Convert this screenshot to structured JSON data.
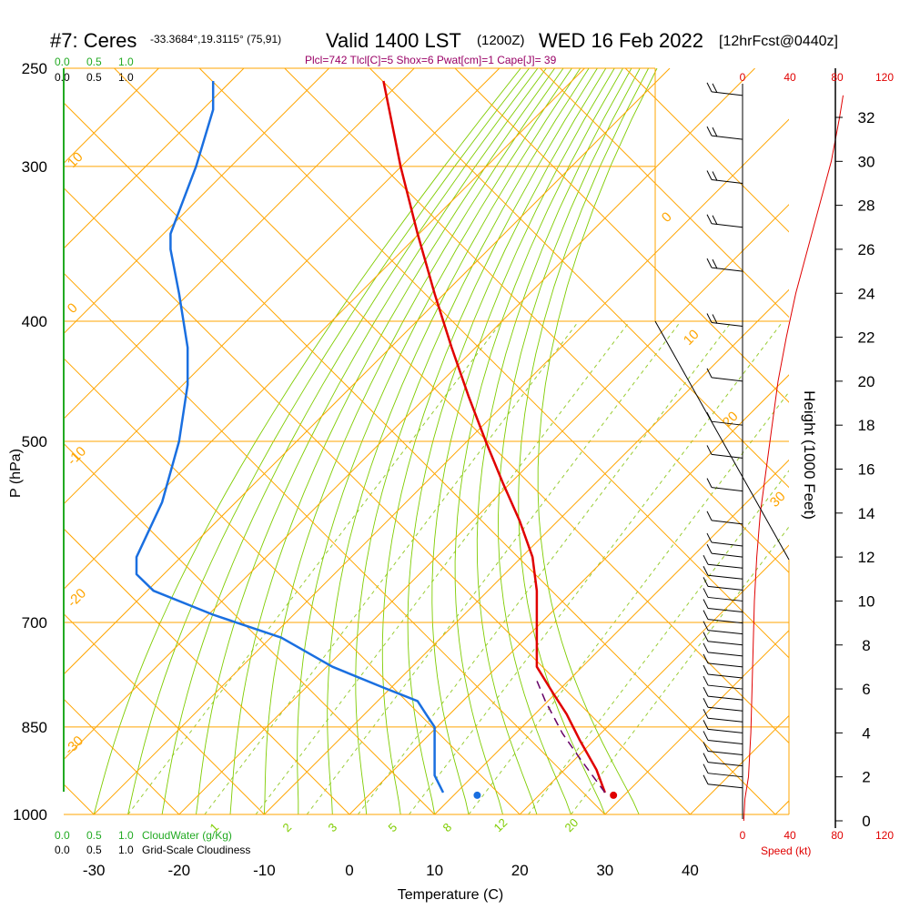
{
  "header": {
    "station": "#7: Ceres",
    "coords": "-33.3684°,19.3115° (75,91)",
    "valid": "Valid 1400 LST",
    "zulu": "(1200Z)",
    "date": "WED 16 Feb 2022",
    "forecast": "[12hrFcst@0440z]",
    "indices": "Plcl=742 Tlcl[C]=5 Shox=6 Pwat[cm]=1 Cape[J]= 39"
  },
  "legend": {
    "cloudwater_label": "CloudWater (g/Kg)",
    "cloudiness_label": "Grid-Scale Cloudiness",
    "scale_ticks": [
      "0.0",
      "0.5",
      "1.0"
    ],
    "cloudiness_ticks": [
      "0.0",
      "0.5",
      "1.0"
    ],
    "top_cloudwater_ticks": [
      "0.0",
      "0.5",
      "1.0"
    ],
    "top_cloudiness_ticks": [
      "0.0",
      "0.5",
      "1.0"
    ]
  },
  "colors": {
    "isobar": "#ffa500",
    "isotherm": "#ffa500",
    "dry_adiabat": "#ffa500",
    "moist_adiabat": "#7fcc00",
    "mixing_ratio": "#99cc33",
    "temperature": "#e00000",
    "dewpoint": "#1a6fe0",
    "parcel": "#660066",
    "speed": "#e00000",
    "indices": "#990066",
    "cloudwater": "#22aa22"
  },
  "chart_data": {
    "type": "line",
    "title": "#7: Ceres  Valid 1400 LST (1200Z) WED 16 Feb 2022",
    "xlabel": "Temperature (C)",
    "ylabel": "P (hPa)",
    "right_ylabel": "Height (1000 Feet)",
    "speed_label": "Speed (kt)",
    "xlim": [
      -35,
      45
    ],
    "pressure_ticks": [
      250,
      300,
      400,
      500,
      700,
      850,
      1000
    ],
    "temperature_ticks": [
      -30,
      -20,
      -10,
      0,
      10,
      20,
      30,
      40
    ],
    "height_ticks": [
      0,
      2,
      4,
      6,
      8,
      10,
      12,
      14,
      16,
      18,
      20,
      22,
      24,
      26,
      28,
      30,
      32
    ],
    "speed_ticks": [
      0,
      40,
      80,
      120
    ],
    "isotherm_labels": [
      "10",
      "0",
      "-10",
      "-20",
      "-30",
      "0",
      "10",
      "20",
      "30"
    ],
    "mixing_ratio_labels": [
      "1",
      "2",
      "3",
      "5",
      "8",
      "12",
      "20"
    ],
    "series": [
      {
        "name": "Temperature",
        "points": [
          [
            4,
            256
          ],
          [
            6,
            300
          ],
          [
            8,
            340
          ],
          [
            10,
            380
          ],
          [
            12,
            420
          ],
          [
            14,
            460
          ],
          [
            16,
            500
          ],
          [
            18,
            540
          ],
          [
            20,
            580
          ],
          [
            21.5,
            620
          ],
          [
            22,
            660
          ],
          [
            22,
            700
          ],
          [
            22,
            740
          ],
          [
            22,
            760
          ],
          [
            23,
            780
          ],
          [
            24,
            800
          ],
          [
            25.5,
            830
          ],
          [
            27,
            870
          ],
          [
            29,
            920
          ],
          [
            30,
            960
          ]
        ]
      },
      {
        "name": "Dewpoint",
        "points": [
          [
            -16,
            256
          ],
          [
            -16,
            270
          ],
          [
            -18,
            300
          ],
          [
            -21,
            340
          ],
          [
            -21,
            350
          ],
          [
            -20,
            380
          ],
          [
            -19,
            420
          ],
          [
            -19,
            450
          ],
          [
            -20,
            500
          ],
          [
            -22,
            560
          ],
          [
            -25,
            620
          ],
          [
            -25,
            640
          ],
          [
            -23,
            660
          ],
          [
            -16,
            690
          ],
          [
            -8,
            720
          ],
          [
            -2,
            760
          ],
          [
            4,
            790
          ],
          [
            8,
            810
          ],
          [
            9,
            830
          ],
          [
            10,
            850
          ],
          [
            10,
            900
          ],
          [
            10,
            930
          ],
          [
            11,
            960
          ]
        ]
      },
      {
        "name": "Parcel",
        "points": [
          [
            30,
            960
          ],
          [
            27,
            900
          ],
          [
            25,
            860
          ],
          [
            23,
            810
          ],
          [
            22,
            780
          ]
        ]
      }
    ],
    "surface_temperature": 31,
    "surface_dewpoint": 15,
    "speed_profile": [
      [
        1,
        0
      ],
      [
        2,
        1
      ],
      [
        5,
        2
      ],
      [
        7,
        4
      ],
      [
        8,
        6
      ],
      [
        9,
        8
      ],
      [
        10,
        10
      ],
      [
        12,
        12
      ],
      [
        15,
        14
      ],
      [
        20,
        16
      ],
      [
        25,
        18
      ],
      [
        30,
        20
      ],
      [
        37,
        22
      ],
      [
        45,
        24
      ],
      [
        55,
        26
      ],
      [
        65,
        28
      ],
      [
        75,
        30
      ],
      [
        82,
        32
      ],
      [
        85,
        33
      ]
    ],
    "wind_barbs_ft": [
      1.5,
      2,
      2.5,
      3,
      3.5,
      4,
      4.5,
      5,
      5.5,
      6,
      6.5,
      7,
      7.5,
      8,
      8.5,
      9,
      9.5,
      10,
      10.5,
      11,
      11.5,
      12,
      12.5,
      13.5,
      15,
      16.5,
      18,
      20,
      22.5,
      25,
      27,
      29,
      31,
      33
    ]
  }
}
